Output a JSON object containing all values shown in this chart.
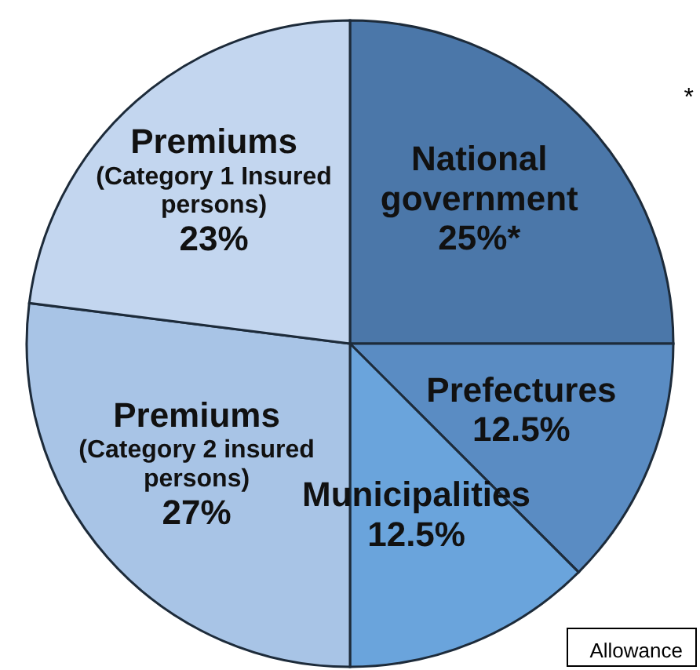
{
  "chart_data": {
    "type": "pie",
    "categories": [
      "National government",
      "Prefectures",
      "Municipalities",
      "Premiums (Category 2 insured persons)",
      "Premiums (Category 1 Insured persons)"
    ],
    "values": [
      25,
      12.5,
      12.5,
      27,
      23
    ],
    "value_labels": [
      "25%*",
      "12.5%",
      "12.5%",
      "27%",
      "23%"
    ],
    "colors": [
      "#4b77a9",
      "#5a8cc3",
      "#6aa4dc",
      "#a8c4e6",
      "#c3d6ef"
    ],
    "annotations": [
      "*",
      "Allowance"
    ]
  }
}
